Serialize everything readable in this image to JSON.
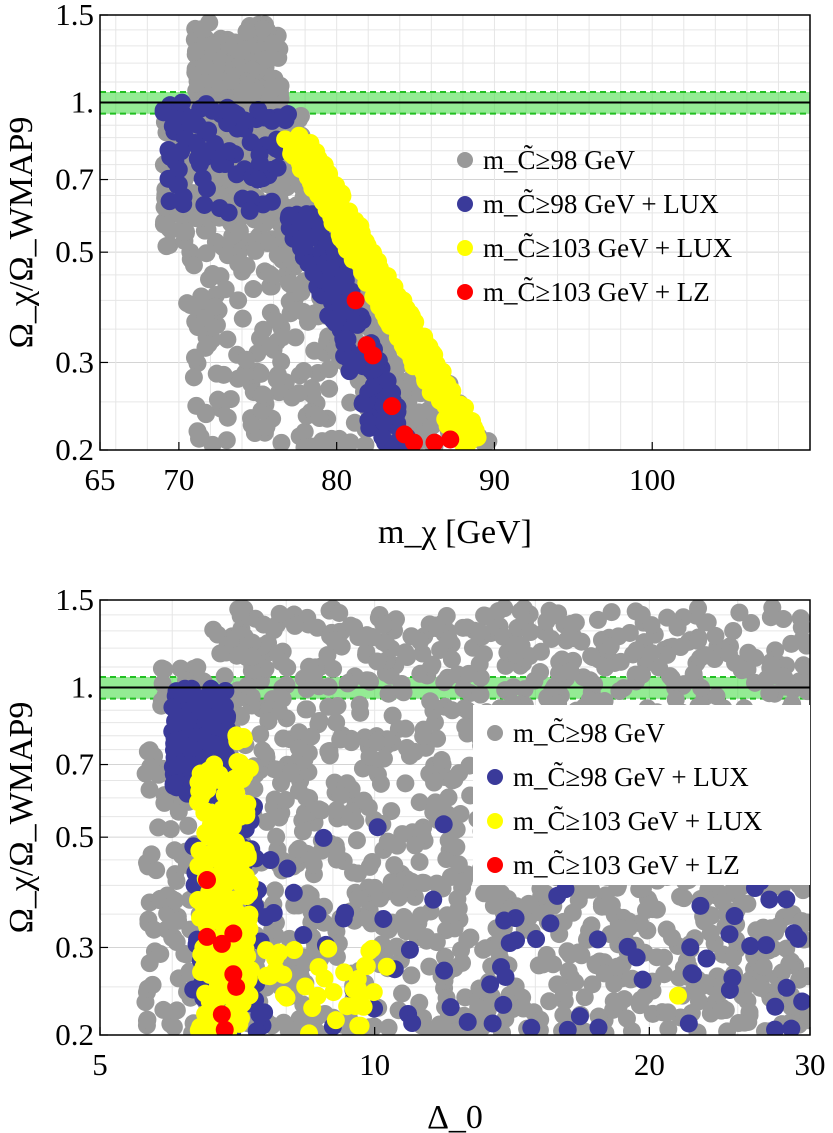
{
  "chart_data": [
    {
      "type": "scatter",
      "title": "",
      "xlabel": "m_χ [GeV]",
      "ylabel": "Ω_χ/Ω_WMAP9",
      "x_scale": "linear",
      "y_scale": "log",
      "xlim": [
        65,
        110
      ],
      "ylim": [
        0.2,
        1.5
      ],
      "x_ticks": [
        "65",
        "70",
        "80",
        "90",
        "100"
      ],
      "y_ticks": [
        "0.2",
        "0.3",
        "0.5",
        "0.7",
        "1.",
        "1.5"
      ],
      "grid": true,
      "legend_position": "right",
      "reference_line": {
        "y": 1.0,
        "band": [
          0.95,
          1.05
        ],
        "color": "#3ddb3d"
      },
      "series": [
        {
          "name": "m_C̃≥98 GeV",
          "color": "#999999",
          "region": "x 68–90, y 0.2–1.45 (broad cloud ending at upper-right boundary)"
        },
        {
          "name": "m_C̃≥98 GeV + LUX",
          "color": "#3a3a9a",
          "region": "x 69–84, y 0.2–1.0"
        },
        {
          "name": "m_C̃≥103 GeV + LUX",
          "color": "#ffff00",
          "region": "thin band from (77, 0.85) to (89, 0.2)"
        },
        {
          "name": "m_C̃≥103 GeV + LZ",
          "color": "#ff0000",
          "points": [
            [
              81.2,
              0.4
            ],
            [
              81.9,
              0.325
            ],
            [
              82.3,
              0.31
            ],
            [
              83.5,
              0.245
            ],
            [
              84.3,
              0.215
            ],
            [
              84.9,
              0.207
            ],
            [
              86.2,
              0.207
            ],
            [
              87.2,
              0.21
            ]
          ]
        }
      ]
    },
    {
      "type": "scatter",
      "title": "",
      "xlabel": "Δ_0",
      "ylabel": "Ω_χ/Ω_WMAP9",
      "x_scale": "log",
      "y_scale": "log",
      "xlim": [
        5,
        30
      ],
      "ylim": [
        0.2,
        1.5
      ],
      "x_ticks": [
        "5",
        "10",
        "20",
        "30"
      ],
      "y_ticks": [
        "0.2",
        "0.3",
        "0.5",
        "0.7",
        "1.",
        "1.5"
      ],
      "grid": true,
      "legend_position": "right",
      "reference_line": {
        "y": 1.0,
        "band": [
          0.95,
          1.05
        ],
        "color": "#3ddb3d"
      },
      "series": [
        {
          "name": "m_C̃≥98 GeV",
          "color": "#999999",
          "region": "x 5.6–30, y 0.2–1.45 (broad cloud)"
        },
        {
          "name": "m_C̃≥98 GeV + LUX",
          "color": "#3a3a9a",
          "region": "dense at x 6.0–6.8 y 0.6–1.0; scattered x 6.5–30 y 0.2–0.6"
        },
        {
          "name": "m_C̃≥103 GeV + LUX",
          "color": "#ffff00",
          "region": "x 6.4–10.5, y 0.2–0.85; isolated point at (21.5, 0.24)"
        },
        {
          "name": "m_C̃≥103 GeV + LZ",
          "color": "#ff0000",
          "points": [
            [
              6.55,
              0.41
            ],
            [
              6.55,
              0.315
            ],
            [
              6.8,
              0.305
            ],
            [
              7.0,
              0.32
            ],
            [
              7.0,
              0.265
            ],
            [
              7.05,
              0.25
            ],
            [
              6.8,
              0.22
            ],
            [
              6.85,
              0.205
            ]
          ]
        }
      ]
    }
  ]
}
